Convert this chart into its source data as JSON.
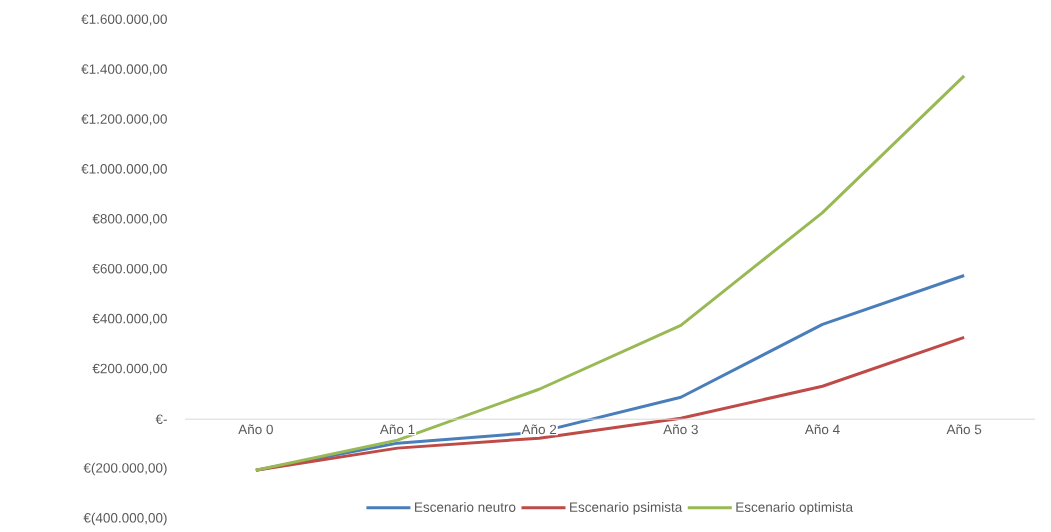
{
  "chart_data": {
    "type": "line",
    "categories": [
      "Año 0",
      "Año 1",
      "Año 2",
      "Año 3",
      "Año 4",
      "Año 5"
    ],
    "series": [
      {
        "name": "Escenario neutro",
        "color": "#4a7ebb",
        "values": [
          -205000,
          -96000,
          -52000,
          88000,
          380000,
          576000
        ]
      },
      {
        "name": "Escenario psimista",
        "color": "#be4b48",
        "values": [
          -205000,
          -116000,
          -76000,
          4000,
          132000,
          328000
        ]
      },
      {
        "name": "Escenario optimista",
        "color": "#98b954",
        "values": [
          -205000,
          -84000,
          120000,
          376000,
          828000,
          1376000
        ]
      }
    ],
    "ylim": [
      -400000,
      1600000
    ],
    "yticks": [
      {
        "value": -400000,
        "label": "€(400.000,00)"
      },
      {
        "value": -200000,
        "label": "€(200.000,00)"
      },
      {
        "value": 0,
        "label": "€-"
      },
      {
        "value": 200000,
        "label": "€200.000,00"
      },
      {
        "value": 400000,
        "label": "€400.000,00"
      },
      {
        "value": 600000,
        "label": "€600.000,00"
      },
      {
        "value": 800000,
        "label": "€800.000,00"
      },
      {
        "value": 1000000,
        "label": "€1.000.000,00"
      },
      {
        "value": 1200000,
        "label": "€1.200.000,00"
      },
      {
        "value": 1400000,
        "label": "€1.400.000,00"
      },
      {
        "value": 1600000,
        "label": "€1.600.000,00"
      }
    ],
    "legend": "bottom",
    "marker": "none",
    "line_style": "solid"
  }
}
